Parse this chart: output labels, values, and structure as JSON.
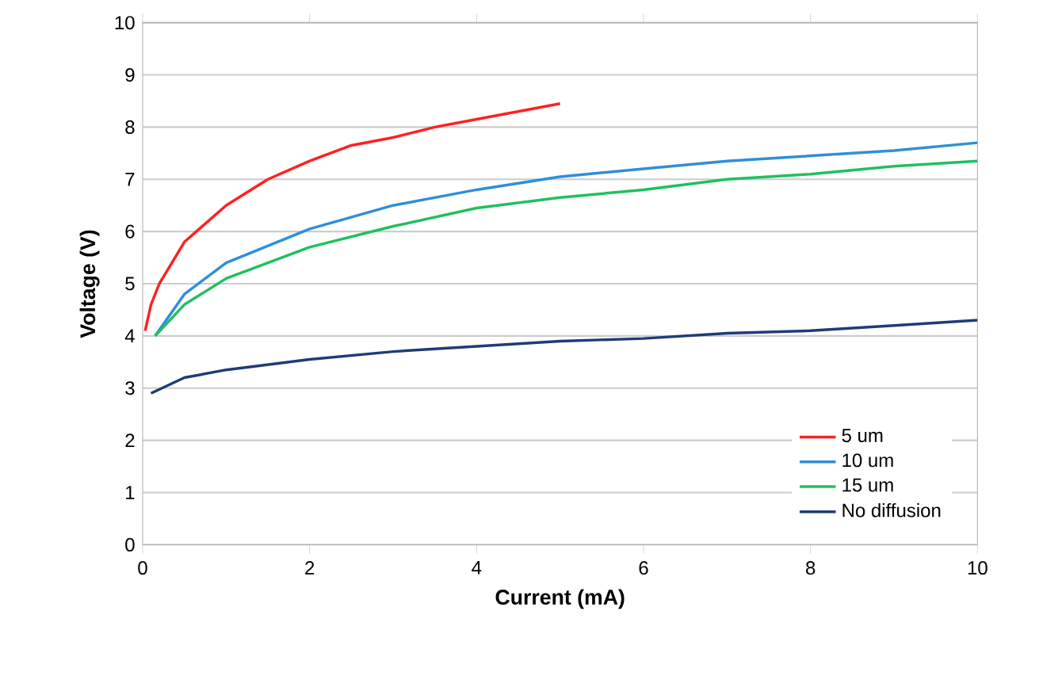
{
  "chart_data": {
    "type": "line",
    "xlabel": "Current (mA)",
    "ylabel": "Voltage (V)",
    "xlim": [
      0,
      10
    ],
    "ylim": [
      0,
      10
    ],
    "xticks": [
      0,
      2,
      4,
      6,
      8,
      10
    ],
    "yticks": [
      0,
      1,
      2,
      3,
      4,
      5,
      6,
      7,
      8,
      9,
      10
    ],
    "grid": "y",
    "legend": "bottom right",
    "marker": "none",
    "line_style": "solid",
    "series": [
      {
        "name": "5 um",
        "color": "#ff2020",
        "x": [
          0.03,
          0.1,
          0.2,
          0.5,
          1,
          1.5,
          2,
          2.5,
          3,
          3.5,
          4,
          4.5,
          5
        ],
        "values": [
          4.1,
          4.6,
          5.0,
          5.8,
          6.5,
          7.0,
          7.35,
          7.65,
          7.8,
          8.0,
          8.15,
          8.3,
          8.45
        ]
      },
      {
        "name": "10 um",
        "color": "#2f8fd8",
        "x": [
          0.15,
          0.5,
          1,
          2,
          3,
          4,
          5,
          6,
          7,
          8,
          9,
          10
        ],
        "values": [
          4.0,
          4.8,
          5.4,
          6.05,
          6.5,
          6.8,
          7.05,
          7.2,
          7.35,
          7.45,
          7.55,
          7.7
        ]
      },
      {
        "name": "15 um",
        "color": "#20c060",
        "x": [
          0.15,
          0.5,
          1,
          2,
          3,
          4,
          5,
          6,
          7,
          8,
          9,
          10
        ],
        "values": [
          4.0,
          4.6,
          5.1,
          5.7,
          6.1,
          6.45,
          6.65,
          6.8,
          7.0,
          7.1,
          7.25,
          7.35
        ]
      },
      {
        "name": "No diffusion",
        "color": "#1f3c78",
        "x": [
          0.1,
          0.5,
          1,
          2,
          3,
          4,
          5,
          6,
          7,
          8,
          9,
          10
        ],
        "values": [
          2.9,
          3.2,
          3.35,
          3.55,
          3.7,
          3.8,
          3.9,
          3.95,
          4.05,
          4.1,
          4.2,
          4.3
        ]
      }
    ]
  }
}
